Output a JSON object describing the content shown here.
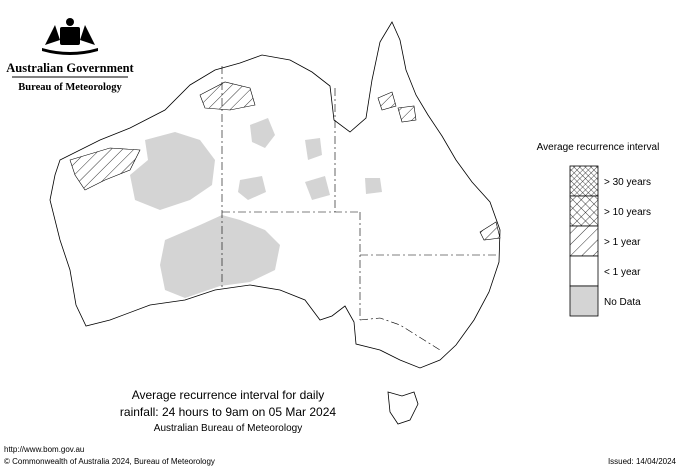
{
  "header": {
    "government": "Australian Government",
    "agency": "Bureau of Meteorology"
  },
  "legend": {
    "title": "Average recurrence interval",
    "items": [
      "> 30 years",
      "> 10 years",
      "> 1 year",
      "< 1 year",
      "No Data"
    ]
  },
  "caption": {
    "line1": "Average recurrence interval for daily",
    "line2": "rainfall: 24 hours to 9am on 05 Mar 2024",
    "line3": "Australian Bureau of Meteorology"
  },
  "footer": {
    "url": "http://www.bom.gov.au",
    "copyright": "© Commonwealth of Australia 2024, Bureau of Meteorology",
    "issued": "Issued: 14/04/2024"
  }
}
